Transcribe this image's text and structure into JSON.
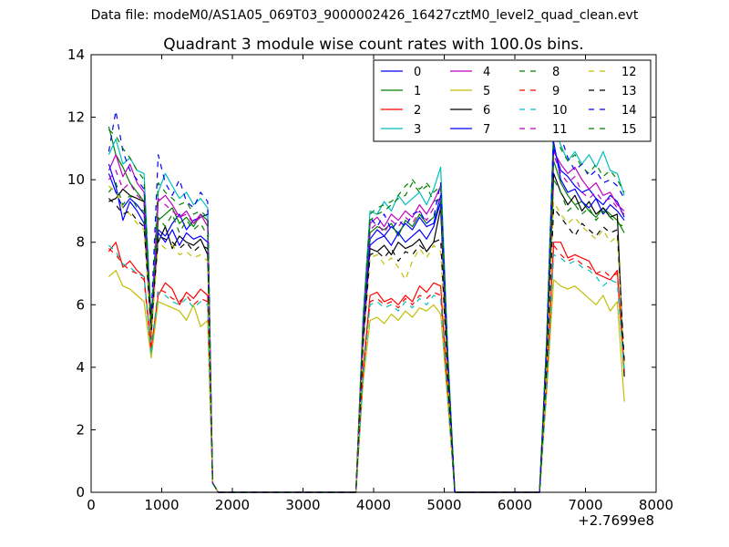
{
  "suptitle": "Data file: modeM0/AS1A05_069T03_9000002426_16427cztM0_level2_quad_clean.evt",
  "chart_data": {
    "type": "line",
    "title": "Quadrant 3 module wise count rates with 100.0s bins.",
    "xlabel": "",
    "ylabel": "",
    "x_offset_label": "+2.7699e8",
    "xlim": [
      0,
      8000
    ],
    "ylim": [
      0,
      14
    ],
    "xticks": [
      "0",
      "1000",
      "2000",
      "3000",
      "4000",
      "5000",
      "6000",
      "7000",
      "8000"
    ],
    "yticks": [
      "0",
      "2",
      "4",
      "6",
      "8",
      "10",
      "12",
      "14"
    ],
    "legend_position": "top-right",
    "legend_columns": 4,
    "x": [
      250,
      350,
      450,
      550,
      650,
      750,
      850,
      950,
      1050,
      1150,
      1250,
      1350,
      1450,
      1550,
      1650,
      1720,
      1800,
      1900,
      2000,
      2500,
      3000,
      3500,
      3750,
      3850,
      3950,
      4050,
      4150,
      4250,
      4350,
      4450,
      4550,
      4650,
      4750,
      4850,
      4950,
      5050,
      5150,
      5250,
      5500,
      6000,
      6350,
      6450,
      6550,
      6650,
      6750,
      6850,
      6950,
      7050,
      7150,
      7250,
      7350,
      7450,
      7550
    ],
    "series": [
      {
        "name": "0",
        "color": "#0000ff",
        "dash": "solid",
        "values": [
          10.2,
          9.6,
          9.1,
          9.4,
          9.2,
          8.9,
          5.2,
          8.4,
          8.2,
          8.6,
          8.9,
          8.4,
          8.7,
          8.8,
          8.9,
          0.3,
          0,
          0,
          0,
          0,
          0,
          0,
          0,
          5.2,
          8.1,
          8.4,
          8.2,
          8.5,
          8.3,
          8.6,
          8.4,
          8.8,
          8.5,
          8.6,
          9.5,
          4.1,
          0,
          0,
          0,
          0,
          0,
          4.5,
          11.0,
          10.3,
          10.1,
          9.8,
          9.6,
          9.7,
          9.4,
          9.2,
          9.5,
          9.3,
          8.8
        ]
      },
      {
        "name": "1",
        "color": "#008000",
        "dash": "solid",
        "values": [
          11.7,
          10.8,
          10.4,
          9.9,
          9.6,
          9.3,
          4.9,
          8.7,
          8.9,
          9.1,
          8.6,
          8.8,
          8.5,
          8.9,
          8.7,
          0.3,
          0,
          0,
          0,
          0,
          0,
          0,
          0,
          5.0,
          8.3,
          8.5,
          8.4,
          8.6,
          8.2,
          8.7,
          8.5,
          8.9,
          8.6,
          8.8,
          9.2,
          4.0,
          0,
          0,
          0,
          0,
          0,
          4.3,
          10.6,
          9.9,
          9.5,
          9.2,
          9.3,
          9.0,
          8.8,
          9.1,
          8.9,
          8.7,
          8.3
        ]
      },
      {
        "name": "2",
        "color": "#ff0000",
        "dash": "solid",
        "values": [
          7.7,
          8.0,
          7.2,
          7.4,
          7.1,
          6.9,
          4.6,
          6.3,
          6.7,
          6.5,
          6.0,
          6.4,
          6.2,
          6.5,
          6.3,
          0.3,
          0,
          0,
          0,
          0,
          0,
          0,
          0,
          3.9,
          6.3,
          6.4,
          6.1,
          6.2,
          6.0,
          6.3,
          6.1,
          6.6,
          6.4,
          6.7,
          6.6,
          3.1,
          0,
          0,
          0,
          0,
          0,
          3.4,
          8.0,
          8.0,
          7.5,
          7.6,
          7.5,
          7.4,
          7.0,
          6.9,
          6.8,
          7.1,
          3.8
        ]
      },
      {
        "name": "3",
        "color": "#00bfbf",
        "dash": "solid",
        "values": [
          10.8,
          11.3,
          10.5,
          10.7,
          10.3,
          10.2,
          5.5,
          9.6,
          10.2,
          9.8,
          9.4,
          9.6,
          9.2,
          9.4,
          9.1,
          0.3,
          0,
          0,
          0,
          0,
          0,
          0,
          0,
          5.6,
          9.0,
          8.9,
          9.3,
          9.0,
          9.5,
          9.2,
          9.4,
          9.6,
          9.2,
          9.7,
          10.4,
          4.5,
          0,
          0,
          0,
          0,
          0,
          4.9,
          11.8,
          11.1,
          10.6,
          10.9,
          10.5,
          10.8,
          10.4,
          10.9,
          10.3,
          10.2,
          9.5
        ]
      },
      {
        "name": "4",
        "color": "#bf00bf",
        "dash": "solid",
        "values": [
          10.3,
          10.8,
          10.1,
          10.5,
          9.9,
          9.6,
          5.0,
          9.3,
          9.5,
          9.2,
          8.8,
          9.0,
          8.6,
          8.9,
          8.5,
          0.3,
          0,
          0,
          0,
          0,
          0,
          0,
          0,
          5.4,
          8.6,
          8.8,
          8.5,
          8.9,
          8.7,
          9.0,
          8.8,
          9.2,
          8.9,
          9.3,
          9.8,
          4.3,
          0,
          0,
          0,
          0,
          0,
          4.6,
          10.9,
          10.5,
          10.2,
          10.4,
          10.0,
          9.7,
          9.9,
          9.5,
          9.6,
          9.2,
          9.0
        ]
      },
      {
        "name": "5",
        "color": "#bfbf00",
        "dash": "solid",
        "values": [
          6.9,
          7.1,
          6.6,
          6.5,
          6.3,
          6.1,
          4.3,
          6.1,
          6.0,
          5.9,
          5.8,
          5.5,
          6.0,
          5.3,
          5.5,
          0.3,
          0,
          0,
          0,
          0,
          0,
          0,
          0,
          3.5,
          5.5,
          5.6,
          5.4,
          5.7,
          5.5,
          5.8,
          5.6,
          5.9,
          5.8,
          6.0,
          5.7,
          2.9,
          0,
          0,
          0,
          0,
          0,
          3.2,
          6.8,
          6.6,
          6.5,
          6.6,
          6.4,
          6.2,
          6.0,
          6.3,
          5.8,
          6.1,
          2.9
        ]
      },
      {
        "name": "6",
        "color": "#000000",
        "dash": "solid",
        "values": [
          9.3,
          9.4,
          9.7,
          9.5,
          9.4,
          9.3,
          5.5,
          8.0,
          8.5,
          7.8,
          8.2,
          8.0,
          7.9,
          8.1,
          7.6,
          0.3,
          0,
          0,
          0,
          0,
          0,
          0,
          0,
          4.8,
          7.8,
          7.7,
          7.9,
          7.6,
          8.0,
          7.8,
          7.9,
          8.1,
          7.7,
          8.0,
          9.1,
          3.7,
          0,
          0,
          0,
          0,
          0,
          4.2,
          10.2,
          9.6,
          9.2,
          9.5,
          9.0,
          9.3,
          8.9,
          9.1,
          8.8,
          8.9,
          3.7
        ]
      },
      {
        "name": "7",
        "color": "#0000ff",
        "dash": "solid",
        "values": [
          10.5,
          9.8,
          8.7,
          9.3,
          9.0,
          8.6,
          5.3,
          8.3,
          8.0,
          8.4,
          7.9,
          8.3,
          8.1,
          8.2,
          8.0,
          0.3,
          0,
          0,
          0,
          0,
          0,
          0,
          0,
          5.0,
          7.9,
          8.1,
          8.2,
          7.9,
          8.3,
          8.0,
          8.2,
          8.4,
          8.1,
          8.5,
          9.3,
          3.9,
          0,
          0,
          0,
          0,
          0,
          4.4,
          11.2,
          10.0,
          9.6,
          9.7,
          9.3,
          9.1,
          9.4,
          8.9,
          9.2,
          9.0,
          8.7
        ]
      },
      {
        "name": "8",
        "color": "#008000",
        "dash": "dashed",
        "values": [
          9.6,
          9.9,
          9.2,
          9.5,
          9.1,
          9.0,
          5.4,
          8.8,
          8.5,
          8.9,
          8.3,
          8.7,
          8.4,
          8.6,
          8.2,
          0.3,
          0,
          0,
          0,
          0,
          0,
          0,
          0,
          5.3,
          8.7,
          8.9,
          9.0,
          9.2,
          9.4,
          9.5,
          9.9,
          9.6,
          9.8,
          9.3,
          9.4,
          4.2,
          0,
          0,
          0,
          0,
          0,
          4.7,
          10.0,
          9.6,
          9.0,
          9.2,
          8.9,
          9.1,
          8.7,
          9.0,
          8.8,
          8.6,
          8.5
        ]
      },
      {
        "name": "9",
        "color": "#ff0000",
        "dash": "dashed",
        "values": [
          7.8,
          7.6,
          7.3,
          7.1,
          7.0,
          6.8,
          4.5,
          6.5,
          6.4,
          6.2,
          6.1,
          6.3,
          6.0,
          6.2,
          6.1,
          0.3,
          0,
          0,
          0,
          0,
          0,
          0,
          0,
          3.8,
          6.1,
          6.2,
          6.0,
          6.1,
          5.9,
          6.2,
          6.0,
          6.3,
          6.2,
          6.4,
          6.3,
          3.0,
          0,
          0,
          0,
          0,
          0,
          3.3,
          7.9,
          7.6,
          7.4,
          7.5,
          7.3,
          7.2,
          7.0,
          7.1,
          6.9,
          7.0,
          3.9
        ]
      },
      {
        "name": "10",
        "color": "#00bfbf",
        "dash": "dashed",
        "values": [
          7.9,
          7.7,
          7.3,
          7.2,
          7.0,
          6.9,
          4.4,
          6.4,
          6.3,
          6.1,
          6.0,
          6.2,
          5.9,
          6.1,
          6.0,
          0.3,
          0,
          0,
          0,
          0,
          0,
          0,
          0,
          3.7,
          6.0,
          6.1,
          5.9,
          6.0,
          5.8,
          6.1,
          5.9,
          6.2,
          6.0,
          6.3,
          6.2,
          3.0,
          0,
          0,
          0,
          0,
          0,
          3.3,
          7.6,
          7.5,
          7.3,
          7.4,
          7.2,
          7.1,
          6.9,
          6.6,
          6.8,
          6.7,
          3.8
        ]
      },
      {
        "name": "11",
        "color": "#bf00bf",
        "dash": "dashed",
        "values": [
          10.0,
          10.3,
          9.7,
          9.9,
          9.5,
          9.3,
          5.1,
          9.4,
          9.2,
          9.0,
          8.8,
          8.9,
          8.6,
          8.8,
          8.7,
          0.3,
          0,
          0,
          0,
          0,
          0,
          0,
          0,
          5.2,
          8.4,
          8.6,
          8.3,
          8.7,
          8.5,
          8.8,
          8.6,
          9.0,
          8.7,
          9.1,
          9.5,
          4.1,
          0,
          0,
          0,
          0,
          0,
          4.5,
          10.8,
          10.2,
          9.9,
          10.1,
          9.6,
          9.4,
          9.6,
          9.3,
          9.4,
          9.1,
          8.9
        ]
      },
      {
        "name": "12",
        "color": "#bfbf00",
        "dash": "dashed",
        "values": [
          9.8,
          9.6,
          9.1,
          8.9,
          8.6,
          8.4,
          5.0,
          8.0,
          7.8,
          7.9,
          7.6,
          7.7,
          7.5,
          7.6,
          7.4,
          0.3,
          0,
          0,
          0,
          0,
          0,
          0,
          0,
          4.6,
          7.5,
          7.6,
          7.3,
          7.5,
          7.2,
          6.8,
          7.4,
          7.8,
          7.5,
          7.9,
          7.7,
          3.6,
          0,
          0,
          0,
          0,
          0,
          4.0,
          9.3,
          8.9,
          8.6,
          8.8,
          8.5,
          8.3,
          8.1,
          8.4,
          8.0,
          8.2,
          4.0
        ]
      },
      {
        "name": "13",
        "color": "#000000",
        "dash": "dashed",
        "values": [
          9.4,
          9.2,
          8.9,
          9.0,
          8.7,
          8.5,
          5.2,
          8.2,
          8.1,
          8.0,
          7.8,
          8.0,
          7.7,
          7.9,
          7.8,
          0.3,
          0,
          0,
          0,
          0,
          0,
          0,
          0,
          4.7,
          7.6,
          7.7,
          7.5,
          7.8,
          7.4,
          7.7,
          7.6,
          7.9,
          7.7,
          8.0,
          8.1,
          3.6,
          0,
          0,
          0,
          0,
          0,
          4.1,
          9.1,
          8.8,
          8.5,
          8.2,
          8.6,
          8.4,
          8.2,
          8.5,
          8.3,
          8.4,
          4.2
        ]
      },
      {
        "name": "14",
        "color": "#0000ff",
        "dash": "dashed",
        "values": [
          10.9,
          12.2,
          10.9,
          10.3,
          10.0,
          9.7,
          5.6,
          10.8,
          9.9,
          9.5,
          10.0,
          9.3,
          9.1,
          9.6,
          9.3,
          0.3,
          0,
          0,
          0,
          0,
          0,
          0,
          0,
          5.3,
          8.8,
          8.5,
          8.9,
          8.4,
          8.7,
          8.5,
          8.9,
          9.0,
          8.6,
          8.8,
          9.9,
          4.3,
          0,
          0,
          0,
          0,
          0,
          4.8,
          11.6,
          11.4,
          10.7,
          10.3,
          10.5,
          10.1,
          10.3,
          9.9,
          10.0,
          9.8,
          9.4
        ]
      },
      {
        "name": "15",
        "color": "#008000",
        "dash": "dashed",
        "values": [
          11.6,
          11.4,
          11.0,
          10.7,
          10.3,
          10.0,
          5.3,
          9.9,
          9.6,
          9.4,
          9.2,
          9.3,
          8.9,
          9.0,
          8.8,
          0.3,
          0,
          0,
          0,
          0,
          0,
          0,
          0,
          5.5,
          8.9,
          9.1,
          9.2,
          9.3,
          9.5,
          9.8,
          10.0,
          9.7,
          9.9,
          9.6,
          9.8,
          4.4,
          0,
          0,
          0,
          0,
          0,
          4.9,
          11.5,
          11.0,
          10.6,
          10.8,
          10.4,
          10.2,
          10.5,
          10.1,
          10.3,
          10.0,
          9.6
        ]
      }
    ]
  }
}
